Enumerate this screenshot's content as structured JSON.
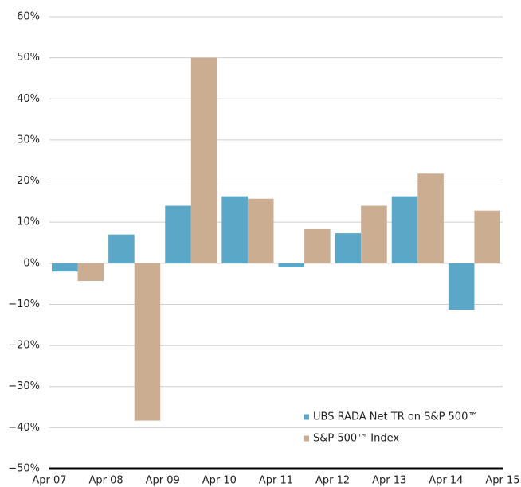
{
  "chart_data": {
    "type": "bar",
    "categories": [
      null,
      null,
      null,
      null,
      null,
      null,
      null,
      null
    ],
    "x_labels": [
      "Apr 07",
      "Apr 08",
      "Apr 09",
      "Apr 10",
      "Apr 11",
      "Apr 12",
      "Apr 13",
      "Apr 14",
      "Apr 15"
    ],
    "series": [
      {
        "name": "UBS RADA Net TR on S&P 500™",
        "color": "#5aa7c8",
        "values": [
          -2,
          7,
          14,
          16.3,
          -1,
          7.3,
          16.3,
          -11.3
        ]
      },
      {
        "name": "S&P 500™ Index",
        "color": "#cbad91",
        "values": [
          -4.3,
          -38.3,
          50,
          15.7,
          8.3,
          14,
          21.8,
          12.8
        ]
      }
    ],
    "ylim": [
      -50,
      60
    ],
    "yticks": [
      {
        "value": -50,
        "label": "−50%"
      },
      {
        "value": -40,
        "label": "−40%"
      },
      {
        "value": -30,
        "label": "−30%"
      },
      {
        "value": -20,
        "label": "−20%"
      },
      {
        "value": -10,
        "label": "−10%"
      },
      {
        "value": 0,
        "label": "0%"
      },
      {
        "value": 10,
        "label": "10%"
      },
      {
        "value": 20,
        "label": "20%"
      },
      {
        "value": 30,
        "label": "30%"
      },
      {
        "value": 40,
        "label": "40%"
      },
      {
        "value": 50,
        "label": "50%"
      },
      {
        "value": 60,
        "label": "60%"
      }
    ],
    "grid": true,
    "legend": "lower right"
  }
}
